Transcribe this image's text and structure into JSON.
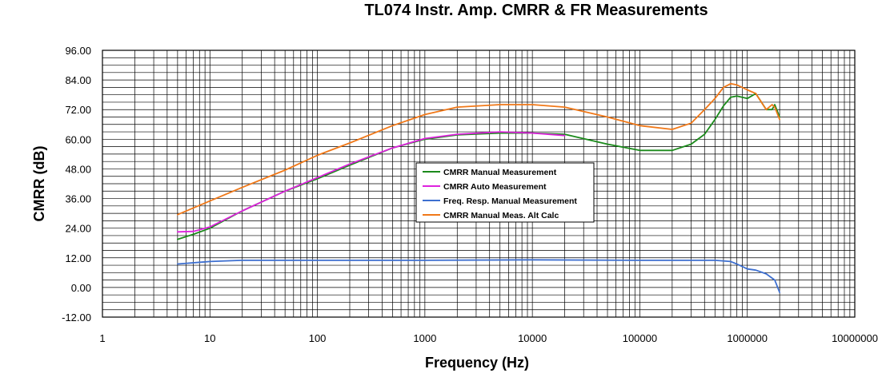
{
  "chart_data": {
    "type": "line",
    "title": "TL074 Instr. Amp. CMRR & FR Measurements",
    "xlabel": "Frequency (Hz)",
    "ylabel": "CMRR (dB)",
    "xscale": "log",
    "xlim": [
      1,
      10000000
    ],
    "ylim": [
      -12,
      96
    ],
    "x_ticks": [
      "1",
      "10",
      "100",
      "1000",
      "10000",
      "100000",
      "1000000",
      "10000000"
    ],
    "y_ticks": [
      "-12.00",
      "0.00",
      "12.00",
      "24.00",
      "36.00",
      "48.00",
      "60.00",
      "72.00",
      "84.00",
      "96.00"
    ],
    "grid": true,
    "legend_position": "center",
    "series": [
      {
        "name": "CMRR Manual Measurement",
        "color": "#1b8a1b",
        "points": [
          [
            5,
            19.5
          ],
          [
            7,
            21.5
          ],
          [
            10,
            24
          ],
          [
            20,
            31
          ],
          [
            50,
            39
          ],
          [
            100,
            44
          ],
          [
            200,
            49.5
          ],
          [
            500,
            56.5
          ],
          [
            1000,
            60
          ],
          [
            2000,
            61.8
          ],
          [
            5000,
            62.5
          ],
          [
            10000,
            62.5
          ],
          [
            20000,
            62
          ],
          [
            50000,
            58
          ],
          [
            100000,
            55.5
          ],
          [
            200000,
            55.5
          ],
          [
            300000,
            58
          ],
          [
            400000,
            62
          ],
          [
            500000,
            68
          ],
          [
            600000,
            73.5
          ],
          [
            700000,
            77
          ],
          [
            800000,
            77.5
          ],
          [
            1000000,
            76.5
          ],
          [
            1200000,
            78.5
          ],
          [
            1500000,
            72
          ],
          [
            1700000,
            72
          ],
          [
            1800000,
            74
          ],
          [
            2000000,
            69
          ]
        ]
      },
      {
        "name": "CMRR Auto Measurement",
        "color": "#dd22dd",
        "points": [
          [
            5,
            22.5
          ],
          [
            7,
            22.7
          ],
          [
            10,
            24.5
          ],
          [
            20,
            31
          ],
          [
            50,
            39
          ],
          [
            100,
            44.5
          ],
          [
            200,
            50
          ],
          [
            500,
            56.5
          ],
          [
            1000,
            60.3
          ],
          [
            2000,
            62
          ],
          [
            5000,
            63
          ],
          [
            10000,
            62.5
          ],
          [
            20000,
            61.5
          ]
        ]
      },
      {
        "name": "Freq. Resp. Manual Measurement",
        "color": "#3d6fd0",
        "points": [
          [
            5,
            9.5
          ],
          [
            10,
            10.5
          ],
          [
            20,
            11
          ],
          [
            100,
            11
          ],
          [
            1000,
            11
          ],
          [
            10000,
            11.2
          ],
          [
            100000,
            11
          ],
          [
            500000,
            11
          ],
          [
            700000,
            10.5
          ],
          [
            800000,
            9.5
          ],
          [
            1000000,
            7.5
          ],
          [
            1200000,
            7
          ],
          [
            1500000,
            5.5
          ],
          [
            1800000,
            3
          ],
          [
            2000000,
            -2
          ]
        ]
      },
      {
        "name": "CMRR Manual Meas. Alt Calc",
        "color": "#f07818",
        "points": [
          [
            5,
            29.5
          ],
          [
            10,
            35
          ],
          [
            20,
            40.5
          ],
          [
            50,
            47.5
          ],
          [
            100,
            53.5
          ],
          [
            200,
            58.5
          ],
          [
            500,
            65.5
          ],
          [
            1000,
            70
          ],
          [
            2000,
            73
          ],
          [
            5000,
            74
          ],
          [
            10000,
            74
          ],
          [
            20000,
            73
          ],
          [
            50000,
            69
          ],
          [
            100000,
            65.5
          ],
          [
            200000,
            64
          ],
          [
            300000,
            66.5
          ],
          [
            400000,
            72
          ],
          [
            500000,
            76.5
          ],
          [
            600000,
            81
          ],
          [
            700000,
            82.5
          ],
          [
            800000,
            82
          ],
          [
            1000000,
            80
          ],
          [
            1200000,
            78.5
          ],
          [
            1500000,
            72
          ],
          [
            1700000,
            74
          ],
          [
            1800000,
            73
          ],
          [
            2000000,
            68
          ]
        ]
      }
    ]
  }
}
